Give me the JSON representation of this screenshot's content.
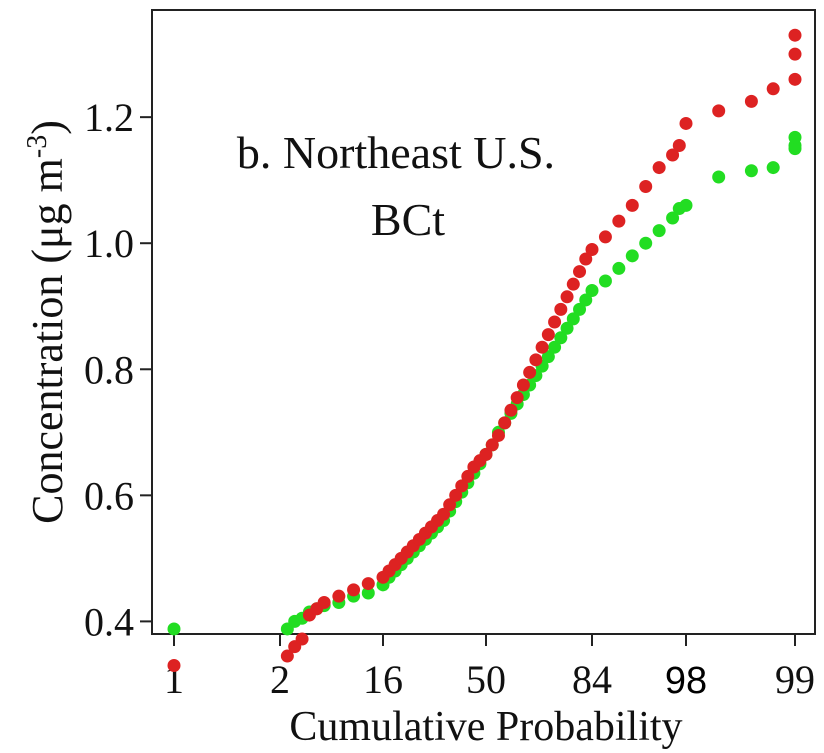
{
  "chart_data": {
    "type": "scatter",
    "title_lines": [
      "b. Northeast U.S.",
      "BCt"
    ],
    "xlabel": "Cumulative Probability",
    "ylabel": "Concentration (μg m-3)",
    "ylabel_parts": {
      "before": "Concentration (",
      "mu": "μ",
      "after": "g m",
      "sup": "-3",
      "close": ")"
    },
    "x_scale": "normal-probability (percent)",
    "x_ticks": [
      {
        "label": "1",
        "value": 1
      },
      {
        "label": "2",
        "value": 2
      },
      {
        "label": "16",
        "value": 16
      },
      {
        "label": "50",
        "value": 50
      },
      {
        "label": "84",
        "value": 84
      },
      {
        "label": "98",
        "value": 98,
        "style": "sans"
      },
      {
        "label": "99",
        "value": 99
      }
    ],
    "ylim": [
      0.38,
      1.37
    ],
    "y_ticks": [
      {
        "label": "0.4",
        "value": 0.4
      },
      {
        "label": "0.6",
        "value": 0.6
      },
      {
        "label": "0.8",
        "value": 0.8
      },
      {
        "label": "1.0",
        "value": 1.0
      },
      {
        "label": "1.2",
        "value": 1.2
      }
    ],
    "grid": false,
    "series": [
      {
        "color": "#22dd22",
        "points": [
          [
            1,
            0.388
          ],
          [
            3,
            0.388
          ],
          [
            4,
            0.4
          ],
          [
            5,
            0.405
          ],
          [
            6,
            0.415
          ],
          [
            7,
            0.42
          ],
          [
            8,
            0.425
          ],
          [
            10,
            0.43
          ],
          [
            12,
            0.44
          ],
          [
            14,
            0.445
          ],
          [
            16,
            0.458
          ],
          [
            18,
            0.47
          ],
          [
            20,
            0.48
          ],
          [
            22,
            0.49
          ],
          [
            24,
            0.5
          ],
          [
            26,
            0.51
          ],
          [
            28,
            0.52
          ],
          [
            30,
            0.53
          ],
          [
            32,
            0.54
          ],
          [
            34,
            0.55
          ],
          [
            36,
            0.56
          ],
          [
            38,
            0.575
          ],
          [
            40,
            0.59
          ],
          [
            42,
            0.605
          ],
          [
            44,
            0.62
          ],
          [
            46,
            0.635
          ],
          [
            48,
            0.65
          ],
          [
            50,
            0.665
          ],
          [
            52,
            0.68
          ],
          [
            54,
            0.7
          ],
          [
            56,
            0.715
          ],
          [
            58,
            0.73
          ],
          [
            60,
            0.745
          ],
          [
            62,
            0.76
          ],
          [
            64,
            0.775
          ],
          [
            66,
            0.79
          ],
          [
            68,
            0.805
          ],
          [
            70,
            0.82
          ],
          [
            72,
            0.835
          ],
          [
            74,
            0.85
          ],
          [
            76,
            0.865
          ],
          [
            78,
            0.88
          ],
          [
            80,
            0.895
          ],
          [
            82,
            0.91
          ],
          [
            84,
            0.925
          ],
          [
            86,
            0.94
          ],
          [
            88,
            0.96
          ],
          [
            90,
            0.98
          ],
          [
            92,
            1.0
          ],
          [
            94,
            1.02
          ],
          [
            96,
            1.04
          ],
          [
            97,
            1.055
          ],
          [
            98,
            1.06
          ],
          [
            98.3,
            1.105
          ],
          [
            98.6,
            1.115
          ],
          [
            98.8,
            1.12
          ],
          [
            99,
            1.15
          ],
          [
            99.3,
            1.155
          ],
          [
            99.7,
            1.168
          ]
        ]
      },
      {
        "color": "#dd2222",
        "points": [
          [
            1,
            0.33
          ],
          [
            3,
            0.345
          ],
          [
            4,
            0.36
          ],
          [
            5,
            0.372
          ],
          [
            6,
            0.41
          ],
          [
            7,
            0.42
          ],
          [
            8,
            0.43
          ],
          [
            10,
            0.44
          ],
          [
            12,
            0.45
          ],
          [
            14,
            0.46
          ],
          [
            16,
            0.47
          ],
          [
            18,
            0.48
          ],
          [
            20,
            0.49
          ],
          [
            22,
            0.5
          ],
          [
            24,
            0.51
          ],
          [
            26,
            0.52
          ],
          [
            28,
            0.53
          ],
          [
            30,
            0.54
          ],
          [
            32,
            0.55
          ],
          [
            34,
            0.56
          ],
          [
            36,
            0.57
          ],
          [
            38,
            0.585
          ],
          [
            40,
            0.6
          ],
          [
            42,
            0.615
          ],
          [
            44,
            0.63
          ],
          [
            46,
            0.645
          ],
          [
            48,
            0.655
          ],
          [
            50,
            0.665
          ],
          [
            52,
            0.68
          ],
          [
            54,
            0.695
          ],
          [
            56,
            0.715
          ],
          [
            58,
            0.735
          ],
          [
            60,
            0.755
          ],
          [
            62,
            0.775
          ],
          [
            64,
            0.795
          ],
          [
            66,
            0.815
          ],
          [
            68,
            0.835
          ],
          [
            70,
            0.855
          ],
          [
            72,
            0.875
          ],
          [
            74,
            0.895
          ],
          [
            76,
            0.915
          ],
          [
            78,
            0.935
          ],
          [
            80,
            0.955
          ],
          [
            82,
            0.975
          ],
          [
            84,
            0.99
          ],
          [
            86,
            1.01
          ],
          [
            88,
            1.035
          ],
          [
            90,
            1.06
          ],
          [
            92,
            1.09
          ],
          [
            94,
            1.12
          ],
          [
            96,
            1.14
          ],
          [
            97,
            1.155
          ],
          [
            98,
            1.19
          ],
          [
            98.3,
            1.21
          ],
          [
            98.6,
            1.225
          ],
          [
            98.8,
            1.245
          ],
          [
            99,
            1.26
          ],
          [
            99.3,
            1.3
          ],
          [
            99.7,
            1.33
          ]
        ]
      }
    ]
  }
}
